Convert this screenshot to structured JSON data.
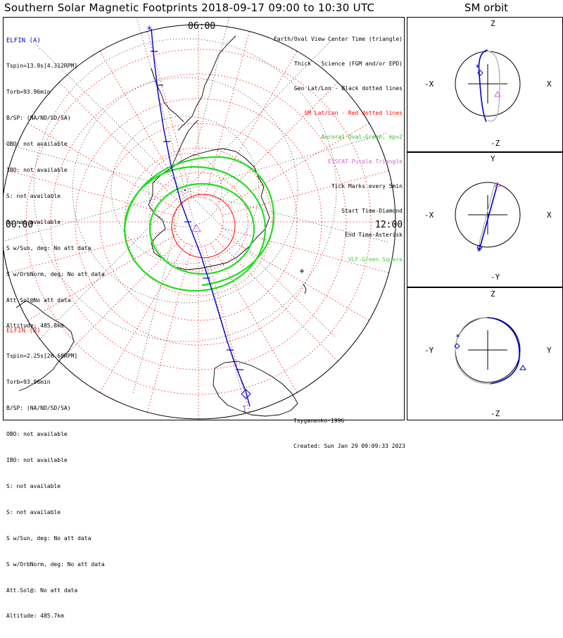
{
  "title": "Southern Solar Magnetic Footprints 2018-09-17 09:00 to 10:30 UTC",
  "orbit_title": "SM orbit",
  "map": {
    "top_label": "06:00",
    "left_label": "00:00",
    "right_label": "12:00"
  },
  "elfin_a": {
    "name": "ELFIN (A)",
    "color": "#0000cc",
    "lines": [
      "Tspin=13.9s[4.312RPM]",
      "Torb=93.96min",
      "B/SP: (NA/ND/SD/SA)",
      "OBO: not available",
      "IBO: not available",
      "S: not available",
      "S: not available",
      "S w/Sun, deg: No att data",
      "S w/OrbNorm, deg: No att data",
      "Att.Sol@No att data",
      "Altitude: 485.8km"
    ]
  },
  "elfin_b": {
    "name": "ELFIN (B)",
    "color": "#dd2222",
    "lines": [
      "Tspin=2.25s[26.68RPM]",
      "Torb=93.96min",
      "B/SP: (NA/ND/SD/SA)",
      "OBO: not available",
      "IBO: not available",
      "S: not available",
      "S: not available",
      "S w/Sun, deg: No att data",
      "S w/OrbNorm, deg: No att data",
      "Att.Sol@: No att data",
      "Altitude: 485.7km"
    ]
  },
  "legend": [
    {
      "text": "Earth/Oval View Center Time (triangle)",
      "color": "#000000"
    },
    {
      "text": "Thick - Science (FGM and/or EPD)",
      "color": "#000000"
    },
    {
      "text": "Geo Lat/Lon - Black dotted lines",
      "color": "#000000"
    },
    {
      "text": "SM Lat/Lon - Red dotted lines",
      "color": "#ff0000"
    },
    {
      "text": "Auroral Oval-Green, kp=2",
      "color": "#22bb22"
    },
    {
      "text": "EISCAT-Purple Triangle",
      "color": "#cc66cc"
    },
    {
      "text": "Tick Marks every 5min",
      "color": "#000000"
    },
    {
      "text": "Start Time-Diamond",
      "color": "#000000"
    },
    {
      "text": "End Time-Asterisk",
      "color": "#000000"
    },
    {
      "text": "VLF-Green Square",
      "color": "#44cc44"
    }
  ],
  "credit": {
    "model": "Tsyganenko-1996",
    "created": "Created: Sun Jan 29 09:09:33 2023"
  },
  "panels": [
    {
      "top": "Z",
      "bottom": "-Z",
      "left": "-X",
      "right": "X"
    },
    {
      "top": "Y",
      "bottom": "-Y",
      "left": "-X",
      "right": "X"
    },
    {
      "top": "Z",
      "bottom": "-Z",
      "left": "-Y",
      "right": "Y"
    }
  ],
  "colors": {
    "track": "#0000cc",
    "oval": "#22dd22",
    "sm_grid": "#ff0000",
    "geo_grid": "#000000",
    "eiscat": "#cc66cc",
    "orbit_gray": "#aaaaaa"
  }
}
